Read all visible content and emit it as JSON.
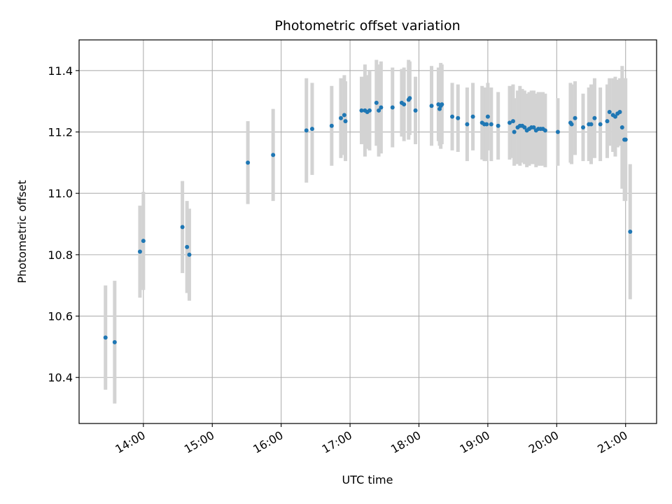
{
  "chart_data": {
    "type": "scatter",
    "title": "Photometric offset variation",
    "xlabel": "UTC time",
    "ylabel": "Photometric offset",
    "x_tick_labels": [
      "14:00",
      "15:00",
      "16:00",
      "17:00",
      "18:00",
      "19:00",
      "20:00",
      "21:00"
    ],
    "y_tick_labels": [
      "10.4",
      "10.6",
      "10.8",
      "11.0",
      "11.2",
      "11.4"
    ],
    "xlim": [
      "13:04",
      "21:27"
    ],
    "ylim": [
      10.25,
      11.5
    ],
    "grid": true,
    "colors": {
      "points": "#1f77b4",
      "errorbars": "#d3d3d3",
      "grid": "#b0b0b0"
    },
    "series": [
      {
        "x": [
          "13:27",
          "13:35",
          "13:57",
          "14:00",
          "14:34",
          "14:38",
          "14:40",
          "15:31",
          "15:53",
          "16:22",
          "16:27",
          "16:44",
          "16:52",
          "16:55",
          "16:56",
          "17:10",
          "17:13",
          "17:15",
          "17:17",
          "17:23",
          "17:25",
          "17:27",
          "17:37",
          "17:45",
          "17:47",
          "17:51",
          "17:52",
          "17:57",
          "18:11",
          "18:17",
          "18:18",
          "18:19",
          "18:20",
          "18:29",
          "18:34",
          "18:42",
          "18:47",
          "18:55",
          "18:57",
          "18:59",
          "19:00",
          "19:03",
          "19:09",
          "19:19",
          "19:22",
          "19:23",
          "19:26",
          "19:28",
          "19:30",
          "19:32",
          "19:34",
          "19:36",
          "19:38",
          "19:40",
          "19:42",
          "19:44",
          "19:46",
          "19:48",
          "19:50",
          "20:01",
          "20:12",
          "20:13",
          "20:16",
          "20:23",
          "20:28",
          "20:30",
          "20:33",
          "20:38",
          "20:44",
          "20:46",
          "20:49",
          "20:51",
          "20:53",
          "20:55",
          "20:57",
          "20:59",
          "21:00",
          "21:04"
        ],
        "values": [
          10.53,
          10.515,
          10.81,
          10.845,
          10.89,
          10.825,
          10.8,
          11.1,
          11.125,
          11.205,
          11.21,
          11.22,
          11.245,
          11.255,
          11.235,
          11.27,
          11.27,
          11.265,
          11.27,
          11.295,
          11.27,
          11.28,
          11.28,
          11.295,
          11.29,
          11.305,
          11.31,
          11.27,
          11.285,
          11.29,
          11.275,
          11.285,
          11.29,
          11.25,
          11.245,
          11.225,
          11.25,
          11.23,
          11.225,
          11.225,
          11.25,
          11.225,
          11.22,
          11.23,
          11.235,
          11.2,
          11.215,
          11.22,
          11.22,
          11.215,
          11.205,
          11.21,
          11.215,
          11.215,
          11.205,
          11.21,
          11.21,
          11.21,
          11.205,
          11.2,
          11.23,
          11.225,
          11.245,
          11.215,
          11.225,
          11.225,
          11.245,
          11.225,
          11.235,
          11.265,
          11.255,
          11.25,
          11.26,
          11.265,
          11.215,
          11.175,
          11.175,
          10.875
        ],
        "yerr": [
          0.17,
          0.2,
          0.15,
          0.16,
          0.15,
          0.15,
          0.15,
          0.135,
          0.15,
          0.17,
          0.15,
          0.13,
          0.13,
          0.13,
          0.13,
          0.11,
          0.15,
          0.12,
          0.13,
          0.14,
          0.15,
          0.15,
          0.13,
          0.11,
          0.12,
          0.13,
          0.12,
          0.11,
          0.13,
          0.12,
          0.12,
          0.14,
          0.13,
          0.11,
          0.11,
          0.12,
          0.11,
          0.12,
          0.12,
          0.12,
          0.11,
          0.12,
          0.11,
          0.12,
          0.12,
          0.11,
          0.12,
          0.13,
          0.12,
          0.12,
          0.12,
          0.12,
          0.12,
          0.12,
          0.12,
          0.12,
          0.12,
          0.12,
          0.12,
          0.11,
          0.13,
          0.13,
          0.12,
          0.11,
          0.12,
          0.13,
          0.13,
          0.12,
          0.12,
          0.11,
          0.12,
          0.13,
          0.11,
          0.11,
          0.2,
          0.2,
          0.2,
          0.22
        ]
      }
    ]
  }
}
